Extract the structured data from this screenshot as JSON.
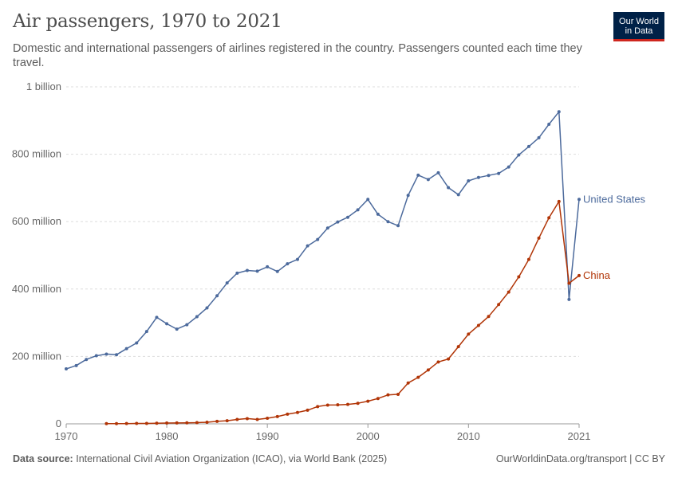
{
  "header": {
    "title": "Air passengers, 1970 to 2021",
    "subtitle": "Domestic and international passengers of airlines registered in the country. Passengers counted each time they travel."
  },
  "logo": {
    "line1": "Our World",
    "line2": "in Data"
  },
  "footer": {
    "source_label": "Data source:",
    "source_text": "International Civil Aviation Organization (ICAO), via World Bank (2025)",
    "right_text": "OurWorldinData.org/transport | CC BY"
  },
  "colors": {
    "us": "#4c6a9c",
    "china": "#b13507",
    "grid": "#dddddd",
    "axis": "#999999",
    "text": "#666666"
  },
  "chart_data": {
    "type": "line",
    "title": "Air passengers, 1970 to 2021",
    "xlabel": "",
    "ylabel": "",
    "xlim": [
      1970,
      2021
    ],
    "ylim": [
      0,
      1000000000
    ],
    "x_ticks": [
      {
        "value": 1970,
        "label": "1970"
      },
      {
        "value": 1980,
        "label": "1980"
      },
      {
        "value": 1990,
        "label": "1990"
      },
      {
        "value": 2000,
        "label": "2000"
      },
      {
        "value": 2010,
        "label": "2010"
      },
      {
        "value": 2021,
        "label": "2021"
      }
    ],
    "y_ticks": [
      {
        "value": 0,
        "label": "0"
      },
      {
        "value": 200000000,
        "label": "200 million"
      },
      {
        "value": 400000000,
        "label": "400 million"
      },
      {
        "value": 600000000,
        "label": "600 million"
      },
      {
        "value": 800000000,
        "label": "800 million"
      },
      {
        "value": 1000000000,
        "label": "1 billion"
      }
    ],
    "series": [
      {
        "name": "United States",
        "color": "#4c6a9c",
        "x": [
          1970,
          1971,
          1972,
          1973,
          1974,
          1975,
          1976,
          1977,
          1978,
          1979,
          1980,
          1981,
          1982,
          1983,
          1984,
          1985,
          1986,
          1987,
          1988,
          1989,
          1990,
          1991,
          1992,
          1993,
          1994,
          1995,
          1996,
          1997,
          1998,
          1999,
          2000,
          2001,
          2002,
          2003,
          2004,
          2005,
          2006,
          2007,
          2008,
          2009,
          2010,
          2011,
          2012,
          2013,
          2014,
          2015,
          2016,
          2017,
          2018,
          2019,
          2020,
          2021
        ],
        "values": [
          163000000,
          173000000,
          191000000,
          202000000,
          207000000,
          205000000,
          223000000,
          240000000,
          274000000,
          316000000,
          297000000,
          281000000,
          294000000,
          318000000,
          344000000,
          380000000,
          418000000,
          447000000,
          455000000,
          453000000,
          466000000,
          452000000,
          475000000,
          488000000,
          528000000,
          547000000,
          581000000,
          599000000,
          613000000,
          635000000,
          666000000,
          622000000,
          600000000,
          588000000,
          678000000,
          738000000,
          725000000,
          745000000,
          701000000,
          680000000,
          721000000,
          731000000,
          737000000,
          743000000,
          762000000,
          798000000,
          823000000,
          849000000,
          889000000,
          926000000,
          369000000,
          666000000
        ]
      },
      {
        "name": "China",
        "color": "#b13507",
        "x": [
          1974,
          1975,
          1976,
          1977,
          1978,
          1979,
          1980,
          1981,
          1982,
          1983,
          1984,
          1985,
          1986,
          1987,
          1988,
          1989,
          1990,
          1991,
          1992,
          1993,
          1994,
          1995,
          1996,
          1997,
          1998,
          1999,
          2000,
          2001,
          2002,
          2003,
          2004,
          2005,
          2006,
          2007,
          2008,
          2009,
          2010,
          2011,
          2012,
          2013,
          2014,
          2015,
          2016,
          2017,
          2018,
          2019,
          2020,
          2021
        ],
        "values": [
          600000,
          700000,
          800000,
          1100000,
          1300000,
          1700000,
          2300000,
          2600000,
          3000000,
          3500000,
          4800000,
          7300000,
          9300000,
          13100000,
          15500000,
          12900000,
          16600000,
          21600000,
          28600000,
          33800000,
          40400000,
          51200000,
          55700000,
          56300000,
          57600000,
          60900000,
          67200000,
          75200000,
          85900000,
          87600000,
          121200000,
          138000000,
          159900000,
          183600000,
          192500000,
          229100000,
          266300000,
          292000000,
          318500000,
          353900000,
          390900000,
          436200000,
          487900000,
          551200000,
          611400000,
          659800000,
          417200000,
          440000000
        ]
      }
    ]
  }
}
